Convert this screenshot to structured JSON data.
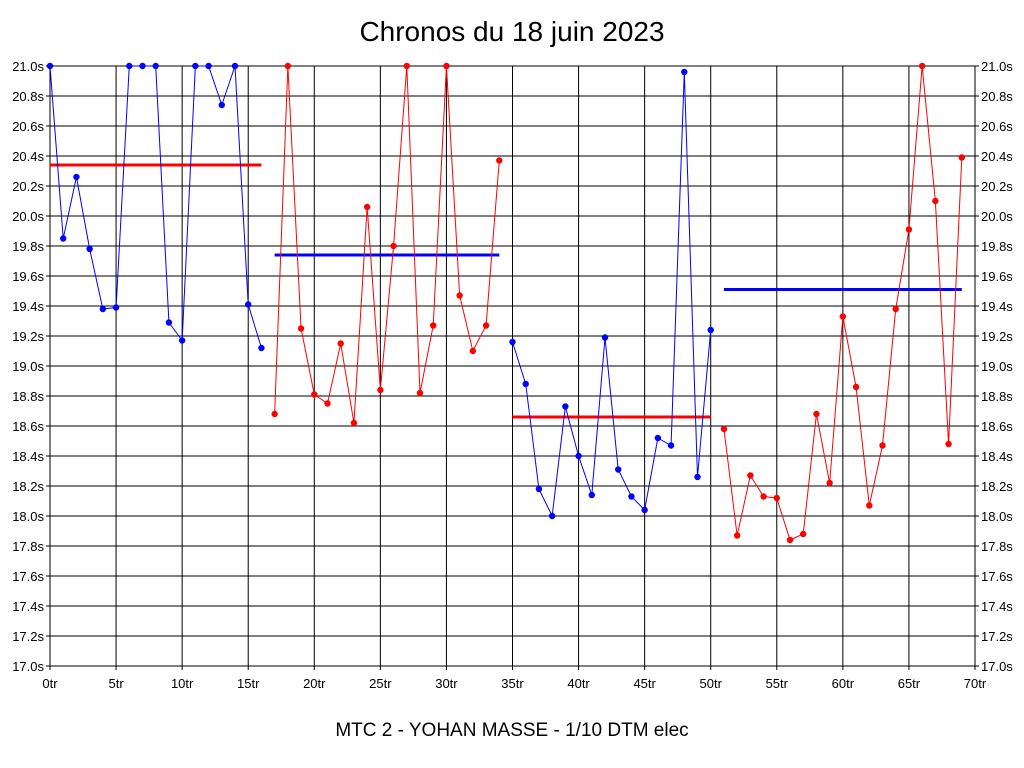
{
  "chart_data": {
    "type": "line",
    "title": "Chronos du 18 juin 2023",
    "caption": "MTC 2 - YOHAN MASSE - 1/10 DTM elec",
    "xlim": [
      0,
      70
    ],
    "ylim": [
      17.0,
      21.0
    ],
    "x_ticks": [
      {
        "value": 0,
        "label": "0tr"
      },
      {
        "value": 5,
        "label": "5tr"
      },
      {
        "value": 10,
        "label": "10tr"
      },
      {
        "value": 15,
        "label": "15tr"
      },
      {
        "value": 20,
        "label": "20tr"
      },
      {
        "value": 25,
        "label": "25tr"
      },
      {
        "value": 30,
        "label": "30tr"
      },
      {
        "value": 35,
        "label": "35tr"
      },
      {
        "value": 40,
        "label": "40tr"
      },
      {
        "value": 45,
        "label": "45tr"
      },
      {
        "value": 50,
        "label": "50tr"
      },
      {
        "value": 55,
        "label": "55tr"
      },
      {
        "value": 60,
        "label": "60tr"
      },
      {
        "value": 65,
        "label": "65tr"
      },
      {
        "value": 70,
        "label": "70tr"
      }
    ],
    "y_ticks": [
      {
        "value": 17.0,
        "label": "17.0s"
      },
      {
        "value": 17.2,
        "label": "17.2s"
      },
      {
        "value": 17.4,
        "label": "17.4s"
      },
      {
        "value": 17.6,
        "label": "17.6s"
      },
      {
        "value": 17.8,
        "label": "17.8s"
      },
      {
        "value": 18.0,
        "label": "18.0s"
      },
      {
        "value": 18.2,
        "label": "18.2s"
      },
      {
        "value": 18.4,
        "label": "18.4s"
      },
      {
        "value": 18.6,
        "label": "18.6s"
      },
      {
        "value": 18.8,
        "label": "18.8s"
      },
      {
        "value": 19.0,
        "label": "19.0s"
      },
      {
        "value": 19.2,
        "label": "19.2s"
      },
      {
        "value": 19.4,
        "label": "19.4s"
      },
      {
        "value": 19.6,
        "label": "19.6s"
      },
      {
        "value": 19.8,
        "label": "19.8s"
      },
      {
        "value": 20.0,
        "label": "20.0s"
      },
      {
        "value": 20.2,
        "label": "20.2s"
      },
      {
        "value": 20.4,
        "label": "20.4s"
      },
      {
        "value": 20.6,
        "label": "20.6s"
      },
      {
        "value": 20.8,
        "label": "20.8s"
      },
      {
        "value": 21.0,
        "label": "21.0s"
      }
    ],
    "grid": true,
    "series": [
      {
        "color": "#0000ff",
        "x": [
          0,
          1,
          2,
          3,
          4,
          5,
          6,
          7,
          8,
          9,
          10,
          11,
          12,
          13,
          14,
          15,
          16
        ],
        "y": [
          21.0,
          19.85,
          20.26,
          19.78,
          19.38,
          19.39,
          21.0,
          21.0,
          21.0,
          19.29,
          19.17,
          21.0,
          21.0,
          20.74,
          21.0,
          19.41,
          19.12
        ]
      },
      {
        "color": "#ff0000",
        "x": [
          17,
          18,
          19,
          20,
          21,
          22,
          23,
          24,
          25,
          26,
          27,
          28,
          29,
          30,
          31,
          32,
          33,
          34
        ],
        "y": [
          18.68,
          21.0,
          19.25,
          18.81,
          18.75,
          19.15,
          18.62,
          20.06,
          18.84,
          19.8,
          21.0,
          18.82,
          19.27,
          21.0,
          19.47,
          19.1,
          19.27,
          20.37
        ]
      },
      {
        "color": "#0000ff",
        "x": [
          35,
          36,
          37,
          38,
          39,
          40,
          41,
          42,
          43,
          44,
          45,
          46,
          47,
          48,
          49,
          50
        ],
        "y": [
          19.16,
          18.88,
          18.18,
          18.0,
          18.73,
          18.4,
          18.14,
          19.19,
          18.31,
          18.13,
          18.04,
          18.52,
          18.47,
          20.96,
          18.26,
          19.24
        ]
      },
      {
        "color": "#ff0000",
        "x": [
          51,
          52,
          53,
          54,
          55,
          56,
          57,
          58,
          59,
          60,
          61,
          62,
          63,
          64,
          65,
          66,
          67,
          68,
          69
        ],
        "y": [
          18.58,
          17.87,
          18.27,
          18.13,
          18.12,
          17.84,
          17.88,
          18.68,
          18.22,
          19.33,
          18.86,
          18.07,
          18.47,
          19.38,
          19.91,
          21.0,
          20.1,
          18.48,
          20.39
        ]
      }
    ],
    "average_lines": [
      {
        "color": "#ff0000",
        "x_start": 0,
        "x_end": 16,
        "y": 20.34
      },
      {
        "color": "#0000ff",
        "x_start": 17,
        "x_end": 34,
        "y": 19.74
      },
      {
        "color": "#ff0000",
        "x_start": 35,
        "x_end": 50,
        "y": 18.66
      },
      {
        "color": "#0000ff",
        "x_start": 51,
        "x_end": 69,
        "y": 19.51
      }
    ]
  }
}
